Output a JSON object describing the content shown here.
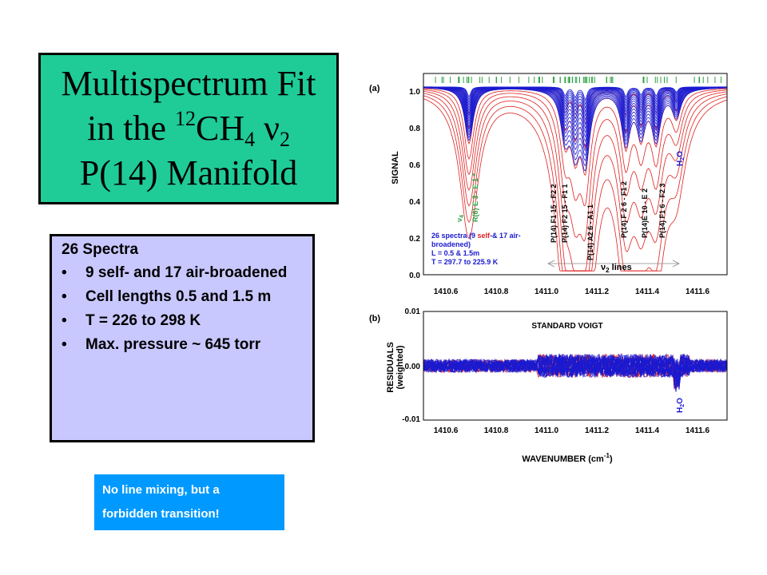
{
  "title": {
    "line1": "Multispectrum Fit",
    "line2_pre": "in the ",
    "line2_sup": "12",
    "line2_mid": "CH",
    "line2_sub": "4",
    "line2_nu": " ν",
    "line2_sub2": "2",
    "line3": "P(14) Manifold"
  },
  "info": {
    "heading": "26 Spectra",
    "bullets": [
      "9 self- and 17 air-broadened",
      "Cell lengths 0.5 and 1.5 m",
      "T = 226 to 298 K",
      "Max. pressure ~ 645 torr"
    ]
  },
  "note": {
    "line1": "No line mixing, but a",
    "line2": "forbidden transition!"
  },
  "colors": {
    "title_bg": "#1fcc97",
    "info_bg": "#c8c8ff",
    "note_bg": "#0099ff",
    "self": "#e02020",
    "air": "#1a1ad0",
    "tick_green": "#2ea043"
  },
  "chart_data": [
    {
      "panel": "(a)",
      "type": "line",
      "ylabel": "SIGNAL",
      "xlim": [
        1410.5,
        1411.7
      ],
      "ylim": [
        0.0,
        1.05
      ],
      "xticks": [
        "1410.6",
        "1410.8",
        "1411.0",
        "1411.2",
        "1411.4",
        "1411.6"
      ],
      "yticks": [
        "0.0",
        "0.2",
        "0.4",
        "0.6",
        "0.8",
        "1.0"
      ],
      "line_labels": [
        "P(14) F1 15 - F2 2",
        "P(14) F2 15 - F1 1",
        "P(14) A2 6 - A1 1",
        "P(14) F 2 6 - F1 2",
        "P(14)E 10 - E 2",
        "P(14) F1 6 - F2 3"
      ],
      "nu4_label": "ν4",
      "forbidden_label": "R(6) E 3 - E 1 *",
      "water_label": "H2O",
      "legend_lines": [
        "26 spectra (9 self-& 17 air-",
        "broadened)",
        "L = 0.5 & 1.5m",
        "T = 297.7 to 225.9 K"
      ],
      "band_label": "ν2 lines",
      "line_centers": [
        1410.68,
        1411.06,
        1411.1,
        1411.14,
        1411.3,
        1411.36,
        1411.42,
        1411.5
      ],
      "line_depths": [
        0.35,
        0.3,
        0.35,
        0.45,
        0.35,
        0.28,
        0.32,
        0.18
      ],
      "series": [
        {
          "name": "self-broadened",
          "color": "#e02020",
          "count": 9
        },
        {
          "name": "air-broadened",
          "color": "#1a1ad0",
          "count": 17
        }
      ]
    },
    {
      "panel": "(b)",
      "type": "line",
      "ylabel": "RESIDUALS (weighted)",
      "xlabel": "WAVENUMBER (cm-1)",
      "annotation": "STANDARD VOIGT",
      "water_label": "H2O",
      "xlim": [
        1410.5,
        1411.7
      ],
      "ylim": [
        -0.01,
        0.01
      ],
      "xticks": [
        "1410.6",
        "1410.8",
        "1411.0",
        "1411.2",
        "1411.4",
        "1411.6"
      ],
      "yticks": [
        "0.01",
        "0.00",
        "-0.01"
      ],
      "noise_amplitude": 0.0012
    }
  ]
}
